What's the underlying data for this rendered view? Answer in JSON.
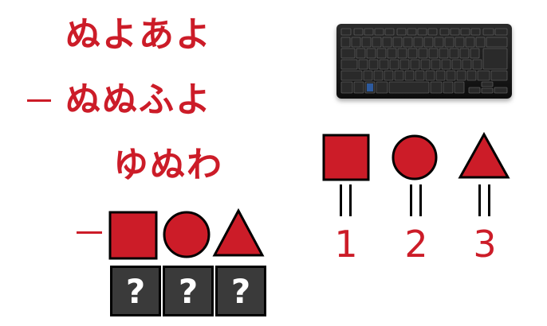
{
  "colors": {
    "accent": "#cc1c28",
    "box_bg": "#3a3a3a",
    "keyboard": "#1a1a1a"
  },
  "puzzle": {
    "line1": "ぬよあよ",
    "line2": "ぬぬふよ",
    "line3": "ゆぬわ",
    "answer_marks": [
      "?",
      "?",
      "?"
    ]
  },
  "legend": {
    "numbers": [
      "1",
      "2",
      "3"
    ],
    "shapes": [
      "square",
      "circle",
      "triangle"
    ]
  },
  "keyboard": {
    "icon": "keyboard-icon"
  }
}
